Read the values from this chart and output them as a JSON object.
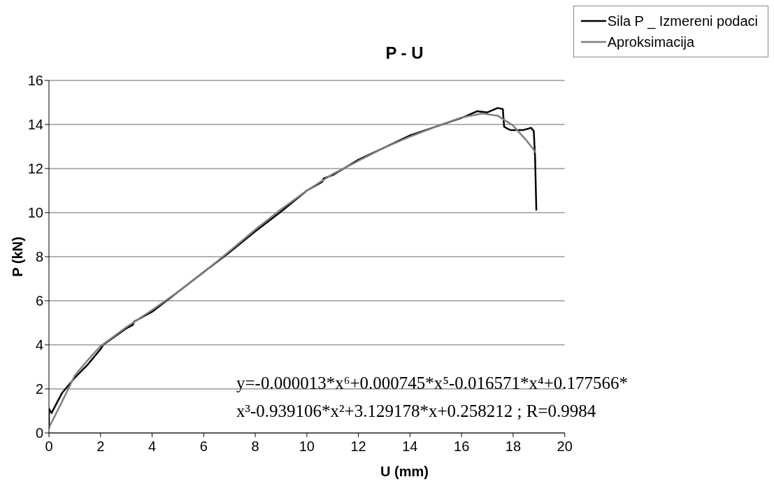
{
  "chart_data": {
    "type": "line",
    "title": "P - U",
    "xlabel": "U (mm)",
    "ylabel": "P (kN)",
    "xlim": [
      0,
      20
    ],
    "xticks": [
      0,
      2,
      4,
      6,
      8,
      10,
      12,
      14,
      16,
      18,
      20
    ],
    "ylim": [
      0,
      16
    ],
    "yticks": [
      0,
      2,
      4,
      6,
      8,
      10,
      12,
      14,
      16
    ],
    "grid": "y",
    "legend": "top right",
    "marker": "none",
    "line_style": "solid",
    "annotations": [
      "y=-0.000013*x⁶+0.000745*x⁵-0.016571*x⁴+0.177566*x³-0.939106*x²+3.129178*x+0.258212  ;  R=0.9984"
    ],
    "series": [
      {
        "name": "Sila P _ Izmereni podaci",
        "color": "#000000",
        "x": [
          0,
          0,
          0.1,
          0.5,
          1,
          1.5,
          2,
          2.1,
          3,
          3.25,
          3.3,
          4,
          5,
          6,
          7,
          8,
          9,
          10,
          10.6,
          10.65,
          11,
          12,
          13,
          14,
          15,
          16,
          16.6,
          17,
          17.4,
          17.6,
          17.65,
          17.8,
          17.9,
          18.2,
          18.4,
          18.7,
          18.8,
          18.85,
          18.9
        ],
        "values": [
          0.2,
          1.1,
          0.9,
          1.8,
          2.5,
          3.1,
          3.8,
          4.0,
          4.75,
          4.9,
          5.05,
          5.5,
          6.4,
          7.3,
          8.2,
          9.15,
          10.05,
          11.0,
          11.4,
          11.55,
          11.7,
          12.4,
          12.95,
          13.5,
          13.9,
          14.3,
          14.6,
          14.55,
          14.75,
          14.7,
          13.9,
          13.8,
          13.75,
          13.75,
          13.75,
          13.85,
          13.7,
          12.5,
          10.1
        ]
      },
      {
        "name": "Aproksimacija",
        "color": "#808080",
        "x": [
          0,
          0.2,
          0.5,
          1,
          1.5,
          2,
          3,
          4,
          5,
          6,
          7,
          8,
          9,
          10,
          11,
          12,
          13,
          14,
          15,
          16,
          16.8,
          17.4,
          18,
          18.5,
          18.88
        ],
        "values": [
          0.25,
          0.7,
          1.4,
          2.6,
          3.3,
          3.94,
          4.8,
          5.58,
          6.4,
          7.29,
          8.25,
          9.23,
          10.15,
          11.0,
          11.75,
          12.35,
          12.95,
          13.45,
          13.9,
          14.32,
          14.5,
          14.4,
          13.95,
          13.3,
          12.73
        ]
      }
    ]
  }
}
